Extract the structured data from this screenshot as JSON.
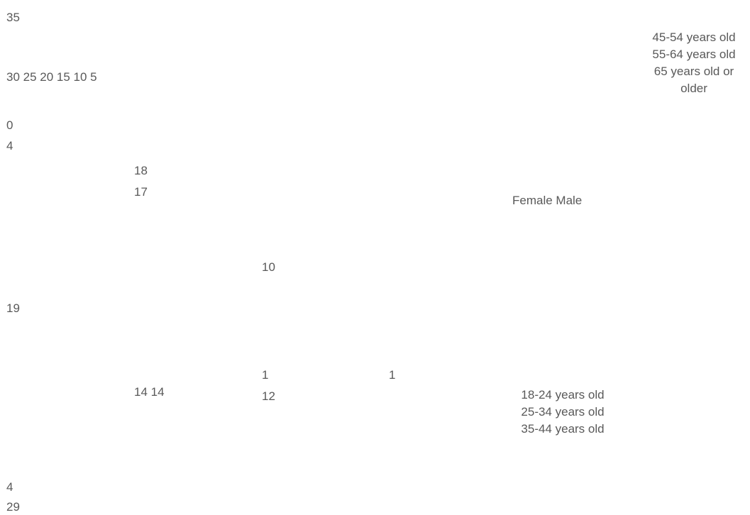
{
  "chart_data": {
    "type": "bar",
    "y_axis": {
      "top_tick": "35",
      "ticks_row": "30 25 20 15 10 5",
      "zero_tick": "0"
    },
    "sex_legend": "Female Male",
    "age_groups": [
      "18-24 years old",
      "25-34 years old",
      "35-44 years old",
      "45-54 years old",
      "55-64 years old",
      "65 years old or older"
    ],
    "data_labels": [
      {
        "text": "4"
      },
      {
        "text": "18"
      },
      {
        "text": "17"
      },
      {
        "text": "10"
      },
      {
        "text": "19"
      },
      {
        "text": "1"
      },
      {
        "text": "1"
      },
      {
        "text": "14 14"
      },
      {
        "text": "12"
      },
      {
        "text": "4"
      },
      {
        "text": "29"
      }
    ]
  }
}
